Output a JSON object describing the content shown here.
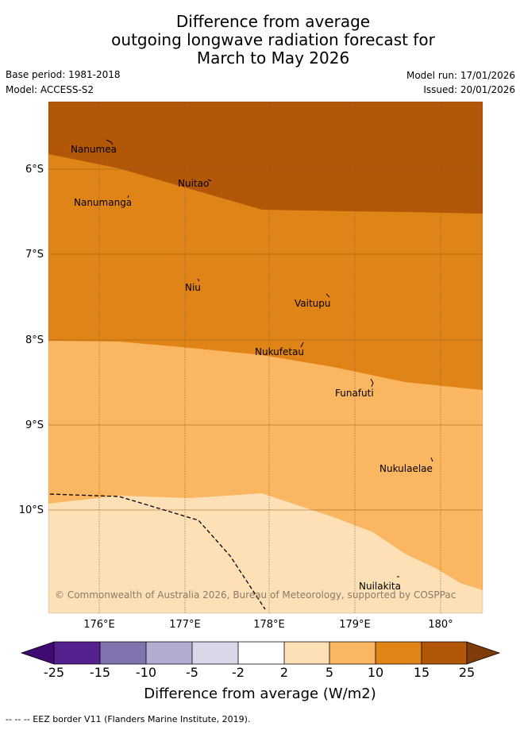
{
  "title": {
    "line1": "Difference from average",
    "line2": "outgoing longwave radiation forecast for",
    "line3": "March to May 2026"
  },
  "meta": {
    "base_period": "Base period: 1981-2018",
    "model": "Model: ACCESS-S2",
    "model_run": "Model run: 17/01/2026",
    "issued": "Issued: 20/01/2026"
  },
  "map": {
    "colors": {
      "band_gt15": "#b25608",
      "band_10_15": "#e18418",
      "band_5_10": "#fbb661",
      "band_2_5": "#fde0b6",
      "grid": "#8a5a20",
      "eez_border": "#000000"
    },
    "lat_labels": [
      "6°S",
      "7°S",
      "8°S",
      "9°S",
      "10°S"
    ],
    "lon_labels": [
      "176°E",
      "177°E",
      "178°E",
      "179°E",
      "180°"
    ],
    "islands": [
      {
        "name": "Nanumea"
      },
      {
        "name": "Nuitao"
      },
      {
        "name": "Nanumanga"
      },
      {
        "name": "Niu"
      },
      {
        "name": "Vaitupu"
      },
      {
        "name": "Nukufetau"
      },
      {
        "name": "Funafuti"
      },
      {
        "name": "Nukulaelae"
      },
      {
        "name": "Nuilakita"
      }
    ],
    "copyright": "© Commonwealth of Australia 2026, Bureau of Meteorology, supported by COSPPac"
  },
  "colorbar": {
    "ticks": [
      "-25",
      "-15",
      "-10",
      "-5",
      "-2",
      "2",
      "5",
      "10",
      "15",
      "25"
    ],
    "colors": [
      "#3f0a72",
      "#54218f",
      "#8173ae",
      "#b2abd2",
      "#d8d8e9",
      "#ffffff",
      "#fde0b6",
      "#fbb661",
      "#e18418",
      "#b25608",
      "#7f3b08"
    ],
    "label": "Difference from average (W/m2)"
  },
  "footer": "--  --  -- EEZ border V11 (Flanders Marine Institute, 2019)."
}
